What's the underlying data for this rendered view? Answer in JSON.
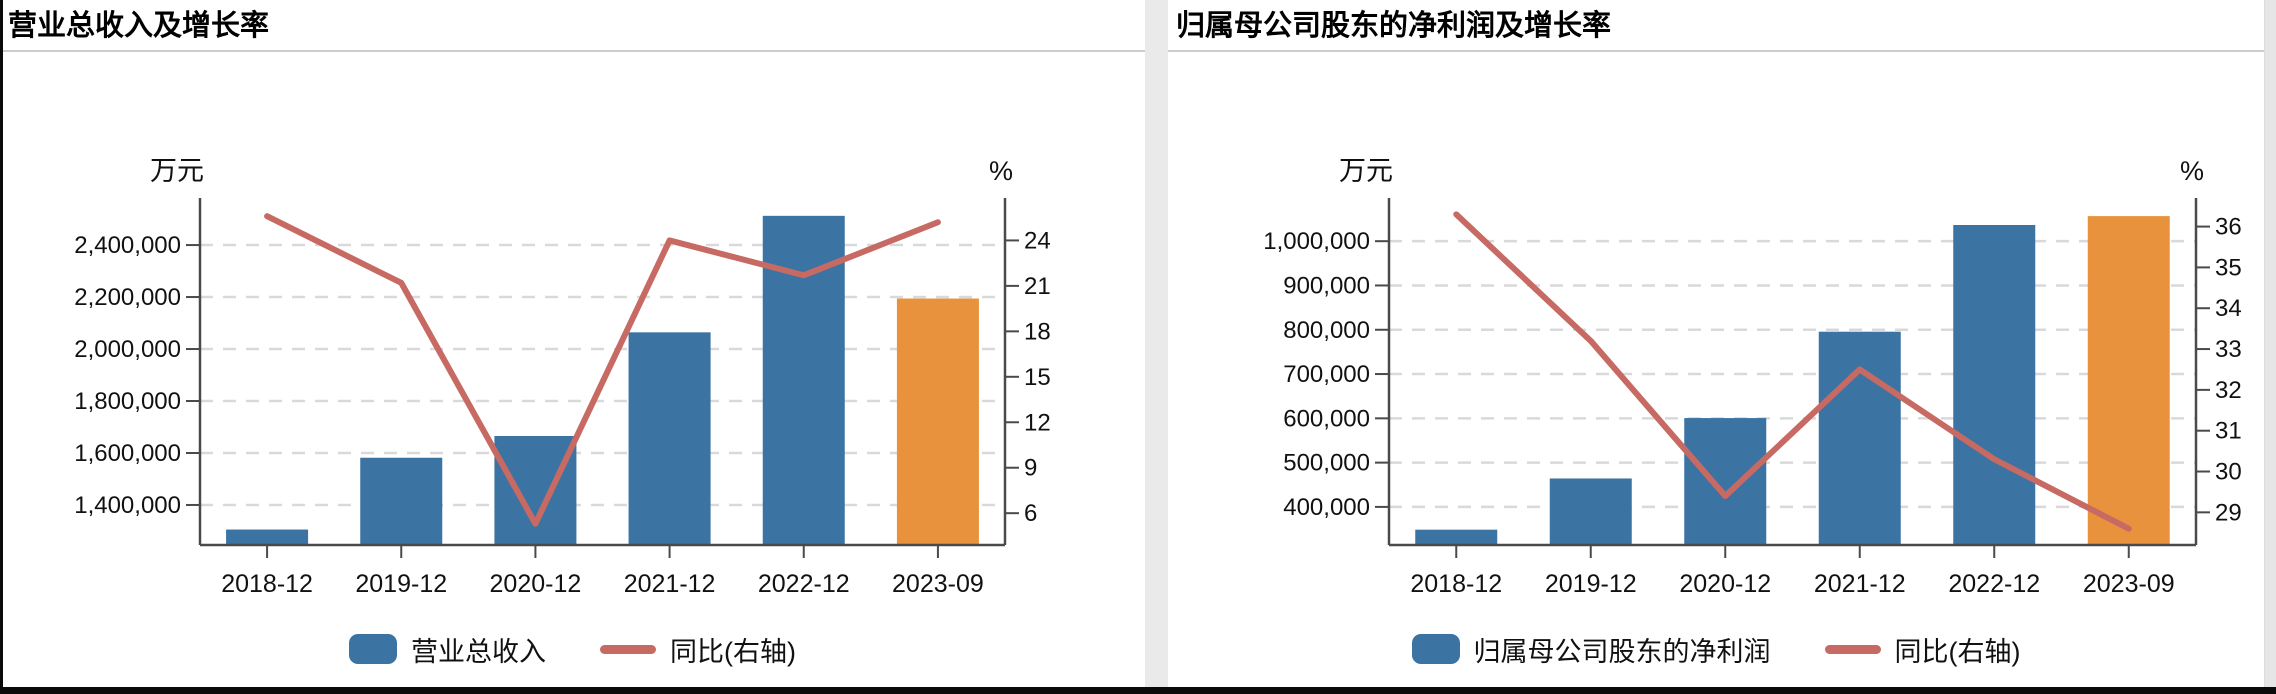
{
  "colors": {
    "bar_blue": "#3b73a2",
    "bar_highlight_orange": "#e8923d",
    "line_red": "#c76a63",
    "grid_dash": "#d9d9dc",
    "axis": "#4a4a4a",
    "tick_text": "#111111",
    "title_text": "#000000",
    "title_divider": "#cccccc",
    "panel_gutter": "#eaeaea",
    "scrollbar_track": "#e6e6e6",
    "window_edge": "#0a0a0a"
  },
  "chart_data": [
    {
      "type": "bar+line",
      "title": "营业总收入及增长率",
      "categories": [
        "2018-12",
        "2019-12",
        "2020-12",
        "2021-12",
        "2022-12",
        "2023-09"
      ],
      "series": [
        {
          "name": "营业总收入",
          "type": "bar",
          "axis": "left",
          "unit": "万元",
          "values": [
            1305500,
            1581700,
            1665300,
            2064200,
            2512400,
            2194300
          ],
          "point_colors": [
            "#3b73a2",
            "#3b73a2",
            "#3b73a2",
            "#3b73a2",
            "#3b73a2",
            "#e8923d"
          ]
        },
        {
          "name": "同比(右轴)",
          "type": "line",
          "axis": "right",
          "unit": "%",
          "color": "#c76a63",
          "values": [
            25.6,
            21.2,
            5.3,
            24.0,
            21.7,
            25.2
          ]
        }
      ],
      "left_axis": {
        "label": "万元",
        "ticks": [
          1400000,
          1600000,
          1800000,
          2000000,
          2200000,
          2400000
        ],
        "range": [
          1246000,
          2581000
        ]
      },
      "right_axis": {
        "label": "%",
        "ticks": [
          6,
          9,
          12,
          15,
          18,
          21,
          24
        ],
        "range": [
          3.9,
          26.8
        ]
      },
      "legend_position": "bottom",
      "grid": "horizontal-dashed"
    },
    {
      "type": "bar+line",
      "title": "归属母公司股东的净利润及增长率",
      "categories": [
        "2018-12",
        "2019-12",
        "2020-12",
        "2021-12",
        "2022-12",
        "2023-09"
      ],
      "series": [
        {
          "name": "归属母公司股东的净利润",
          "type": "bar",
          "axis": "left",
          "unit": "万元",
          "values": [
            348600,
            464200,
            600600,
            795600,
            1036500,
            1056600
          ],
          "point_colors": [
            "#3b73a2",
            "#3b73a2",
            "#3b73a2",
            "#3b73a2",
            "#3b73a2",
            "#e8923d"
          ]
        },
        {
          "name": "同比(右轴)",
          "type": "line",
          "axis": "right",
          "unit": "%",
          "color": "#c76a63",
          "values": [
            36.3,
            33.2,
            29.4,
            32.5,
            30.3,
            28.6
          ]
        }
      ],
      "left_axis": {
        "label": "万元",
        "ticks": [
          400000,
          500000,
          600000,
          700000,
          800000,
          900000,
          1000000
        ],
        "range": [
          314000,
          1097500
        ]
      },
      "right_axis": {
        "label": "%",
        "ticks": [
          29,
          30,
          31,
          32,
          33,
          34,
          35,
          36
        ],
        "range": [
          28.2,
          36.7
        ]
      },
      "legend_position": "bottom",
      "grid": "horizontal-dashed"
    }
  ]
}
